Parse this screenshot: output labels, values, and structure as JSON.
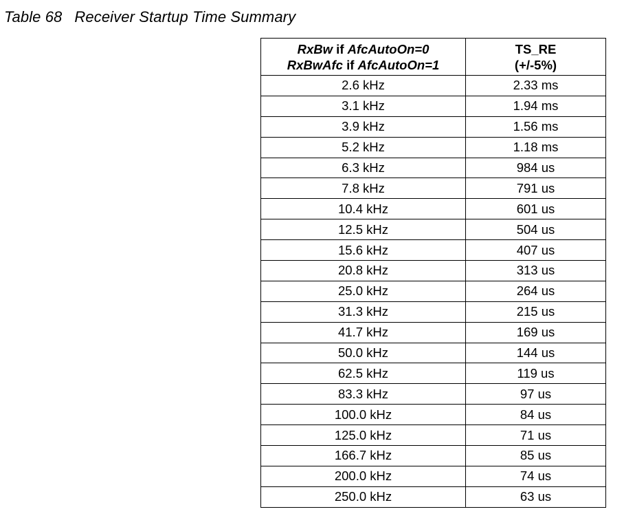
{
  "caption": {
    "number": "Table 68",
    "title": "Receiver Startup Time Summary"
  },
  "table": {
    "header": {
      "col1_line1_var": "RxBw",
      "col1_line1_mid": " if ",
      "col1_line1_cond": "AfcAutoOn=0",
      "col1_line2_var": "RxBwAfc",
      "col1_line2_mid": " if ",
      "col1_line2_cond": "AfcAutoOn=1",
      "col2_line1": "TS_RE",
      "col2_line2": "(+/-5%)"
    },
    "rows": [
      {
        "bandwidth": "2.6 kHz",
        "ts_re": "2.33 ms"
      },
      {
        "bandwidth": "3.1 kHz",
        "ts_re": "1.94 ms"
      },
      {
        "bandwidth": "3.9 kHz",
        "ts_re": "1.56 ms"
      },
      {
        "bandwidth": "5.2 kHz",
        "ts_re": "1.18 ms"
      },
      {
        "bandwidth": "6.3 kHz",
        "ts_re": "984 us"
      },
      {
        "bandwidth": "7.8 kHz",
        "ts_re": "791 us"
      },
      {
        "bandwidth": "10.4 kHz",
        "ts_re": "601 us"
      },
      {
        "bandwidth": "12.5 kHz",
        "ts_re": "504 us"
      },
      {
        "bandwidth": "15.6 kHz",
        "ts_re": "407 us"
      },
      {
        "bandwidth": "20.8 kHz",
        "ts_re": "313 us"
      },
      {
        "bandwidth": "25.0 kHz",
        "ts_re": "264 us"
      },
      {
        "bandwidth": "31.3 kHz",
        "ts_re": "215 us"
      },
      {
        "bandwidth": "41.7 kHz",
        "ts_re": "169 us"
      },
      {
        "bandwidth": "50.0 kHz",
        "ts_re": "144 us"
      },
      {
        "bandwidth": "62.5 kHz",
        "ts_re": "119 us"
      },
      {
        "bandwidth": "83.3 kHz",
        "ts_re": "97 us"
      },
      {
        "bandwidth": "100.0 kHz",
        "ts_re": "84 us"
      },
      {
        "bandwidth": "125.0 kHz",
        "ts_re": "71 us"
      },
      {
        "bandwidth": "166.7 kHz",
        "ts_re": "85 us"
      },
      {
        "bandwidth": "200.0 kHz",
        "ts_re": "74 us"
      },
      {
        "bandwidth": "250.0 kHz",
        "ts_re": "63 us"
      }
    ]
  }
}
